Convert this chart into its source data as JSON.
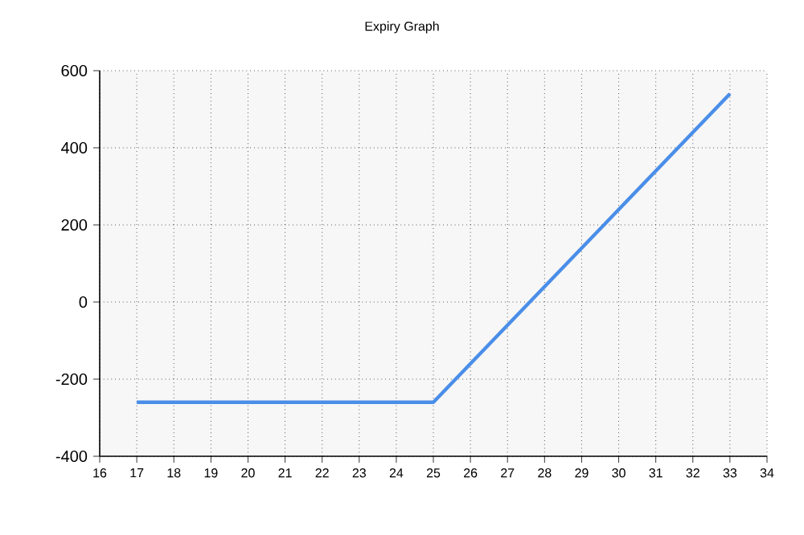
{
  "chart_data": {
    "type": "line",
    "title": "Expiry Graph",
    "x": [
      17,
      25,
      33
    ],
    "series": [
      {
        "color": "#4a8ee8",
        "values": [
          -260,
          -260,
          540
        ]
      }
    ],
    "xlim": [
      16,
      34
    ],
    "xticks": [
      16,
      17,
      18,
      19,
      20,
      21,
      22,
      23,
      24,
      25,
      26,
      27,
      28,
      29,
      30,
      31,
      32,
      33,
      34
    ],
    "ylim": [
      -400,
      600
    ],
    "yticks": [
      -400,
      -200,
      0,
      200,
      400,
      600
    ],
    "grid": true,
    "marker": "none",
    "line_style": "solid"
  }
}
